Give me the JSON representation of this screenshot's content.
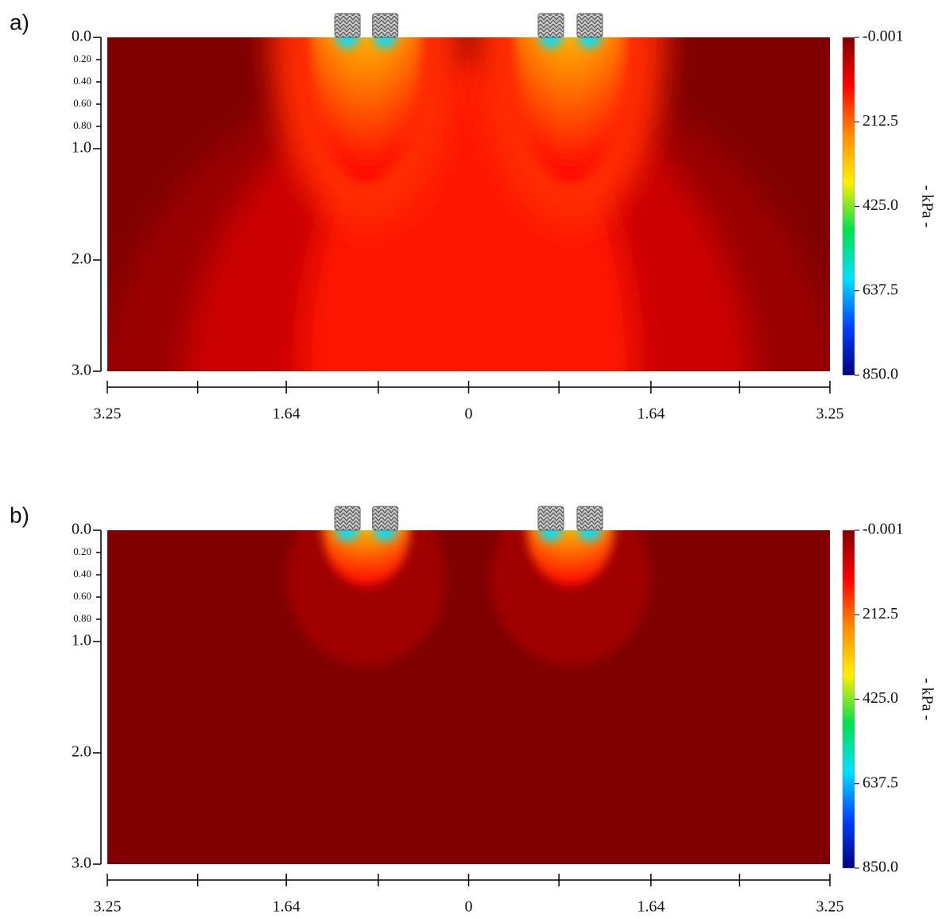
{
  "chart_data": [
    {
      "type": "contour",
      "panel_label": "a)",
      "xlim": [
        -3.25,
        3.25
      ],
      "xticks": [
        {
          "value": -3.25,
          "label": "3.25"
        },
        {
          "value": -1.64,
          "label": "1.64"
        },
        0,
        1.64,
        3.25
      ],
      "xminor_ticks": [
        -2.4375,
        -0.8125,
        0.8125,
        2.4375
      ],
      "ylim": [
        0,
        3
      ],
      "yticks": [
        {
          "value": 0,
          "label": "0.0"
        },
        {
          "value": 0.2,
          "label": "0.20"
        },
        {
          "value": 0.4,
          "label": "0.40"
        },
        {
          "value": 0.6,
          "label": "0.60"
        },
        {
          "value": 0.8,
          "label": "0.80"
        },
        {
          "value": 1,
          "label": "1.0"
        },
        {
          "value": 2,
          "label": "2.0"
        },
        {
          "value": 3,
          "label": "3.0"
        }
      ],
      "tires": [
        -1.09,
        -0.75,
        0.74,
        1.09
      ],
      "colorbar": {
        "label": "- kPa -",
        "lim": [
          -0.001,
          850
        ],
        "ticks": [
          -0.001,
          212.5,
          {
            "value": 425,
            "label": "425.0"
          },
          637.5,
          {
            "value": 850,
            "label": "850.0"
          }
        ],
        "colorscale": [
          "#800000",
          "#ff0000",
          "#ff8c00",
          "#ffee00",
          "#00e050",
          "#00e0ff",
          "#0040ff",
          "#000080"
        ]
      }
    },
    {
      "type": "contour",
      "panel_label": "b)",
      "xlim": [
        -3.25,
        3.25
      ],
      "xticks": [
        {
          "value": -3.25,
          "label": "3.25"
        },
        {
          "value": -1.64,
          "label": "1.64"
        },
        0,
        1.64,
        3.25
      ],
      "xminor_ticks": [
        -2.4375,
        -0.8125,
        0.8125,
        2.4375
      ],
      "ylim": [
        0,
        3
      ],
      "yticks": [
        {
          "value": 0,
          "label": "0.0"
        },
        {
          "value": 0.2,
          "label": "0.20"
        },
        {
          "value": 0.4,
          "label": "0.40"
        },
        {
          "value": 0.6,
          "label": "0.60"
        },
        {
          "value": 0.8,
          "label": "0.80"
        },
        {
          "value": 1,
          "label": "1.0"
        },
        {
          "value": 2,
          "label": "2.0"
        },
        {
          "value": 3,
          "label": "3.0"
        }
      ],
      "tires": [
        -1.09,
        -0.75,
        0.74,
        1.09
      ],
      "colorbar": {
        "label": "- kPa -",
        "lim": [
          -0.001,
          850
        ],
        "ticks": [
          -0.001,
          212.5,
          {
            "value": 425,
            "label": "425.0"
          },
          637.5,
          {
            "value": 850,
            "label": "850.0"
          }
        ],
        "colorscale": [
          "#800000",
          "#ff0000",
          "#ff8c00",
          "#ffee00",
          "#00e050",
          "#00e0ff",
          "#0040ff",
          "#000080"
        ]
      }
    }
  ]
}
